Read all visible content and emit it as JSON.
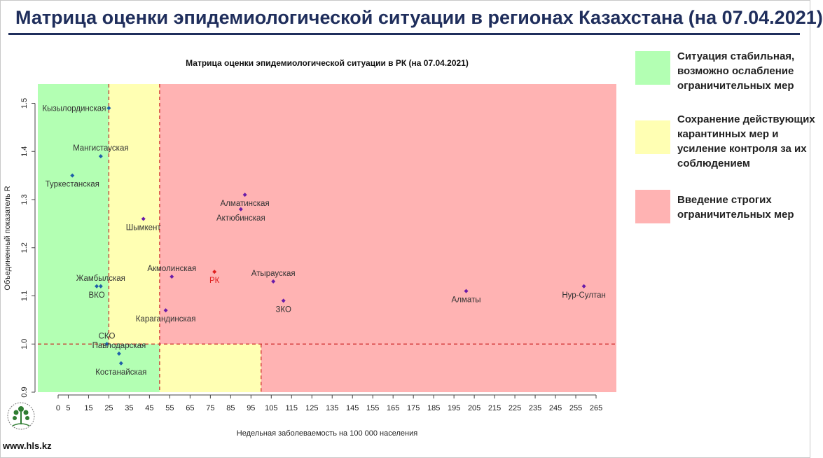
{
  "header": {
    "title": "Матрица оценки эпидемиологической ситуации в регионах Казахстана (на 07.04.2021)"
  },
  "legend": [
    {
      "color": "#b3ffb3",
      "text": "Ситуация стабильная, возможно ослабление ограничительных мер"
    },
    {
      "color": "#ffffb3",
      "text": "Сохранение действующих карантинных мер и усиление контроля за их соблюдением"
    },
    {
      "color": "#ffb3b3",
      "text": "Введение строгих ограничительных мер"
    }
  ],
  "footer": {
    "site": "www.hls.kz"
  },
  "colors": {
    "green_zone": "#b3ffb3",
    "yellow_zone": "#ffffb3",
    "red_zone": "#ffb3b3",
    "divider": "#cc2222",
    "point_blue": "#1f5fa8",
    "point_purple": "#6a1ba8",
    "point_red": "#e02020"
  },
  "chart_data": {
    "type": "scatter",
    "title": "Матрица оценки эпидемиологической ситуации в РК (на 07.04.2021)",
    "xlabel": "Недельная заболеваемость на 100 000 населения",
    "ylabel": "Объединенный показатель R",
    "xlim": [
      -10,
      275
    ],
    "ylim": [
      0.9,
      1.54
    ],
    "x_ticks": [
      0,
      5,
      15,
      25,
      35,
      45,
      55,
      65,
      75,
      85,
      95,
      105,
      115,
      125,
      135,
      145,
      155,
      165,
      175,
      185,
      195,
      205,
      215,
      225,
      235,
      245,
      255,
      265
    ],
    "y_ticks": [
      0.9,
      1.0,
      1.1,
      1.2,
      1.3,
      1.4,
      1.5
    ],
    "thresholds": {
      "x_green_max": 25,
      "x_yellow_max": 50,
      "y_split": 1.0,
      "x_low_yellow_max": 100
    },
    "points": [
      {
        "label": "Кызылординская",
        "x": 25,
        "y": 1.49,
        "color": "blue",
        "label_pos": "left"
      },
      {
        "label": "Мангистауская",
        "x": 21,
        "y": 1.39,
        "color": "blue",
        "label_pos": "above"
      },
      {
        "label": "Туркестанская",
        "x": 7,
        "y": 1.35,
        "color": "blue",
        "label_pos": "below"
      },
      {
        "label": "Шымкент",
        "x": 42,
        "y": 1.26,
        "color": "purple",
        "label_pos": "below"
      },
      {
        "label": "Алматинская",
        "x": 92,
        "y": 1.31,
        "color": "purple",
        "label_pos": "below"
      },
      {
        "label": "Актюбинская",
        "x": 90,
        "y": 1.28,
        "color": "purple",
        "label_pos": "below"
      },
      {
        "label": "Жамбылская",
        "x": 21,
        "y": 1.12,
        "color": "blue",
        "label_pos": "above"
      },
      {
        "label": "ВКО",
        "x": 19,
        "y": 1.12,
        "color": "blue",
        "label_pos": "below"
      },
      {
        "label": "Акмолинская",
        "x": 56,
        "y": 1.14,
        "color": "purple",
        "label_pos": "above"
      },
      {
        "label": "РК",
        "x": 77,
        "y": 1.15,
        "color": "red",
        "label_pos": "below"
      },
      {
        "label": "Атырауская",
        "x": 106,
        "y": 1.13,
        "color": "purple",
        "label_pos": "above"
      },
      {
        "label": "ЗКО",
        "x": 111,
        "y": 1.09,
        "color": "purple",
        "label_pos": "below"
      },
      {
        "label": "Карагандинская",
        "x": 53,
        "y": 1.07,
        "color": "purple",
        "label_pos": "below"
      },
      {
        "label": "Алматы",
        "x": 201,
        "y": 1.11,
        "color": "purple",
        "label_pos": "below"
      },
      {
        "label": "Нур-Султан",
        "x": 259,
        "y": 1.12,
        "color": "purple",
        "label_pos": "below"
      },
      {
        "label": "СКО",
        "x": 24,
        "y": 1.0,
        "color": "blue",
        "label_pos": "above"
      },
      {
        "label": "Павлодарская",
        "x": 30,
        "y": 0.98,
        "color": "blue",
        "label_pos": "above"
      },
      {
        "label": "Костанайская",
        "x": 31,
        "y": 0.96,
        "color": "blue",
        "label_pos": "below"
      }
    ]
  }
}
